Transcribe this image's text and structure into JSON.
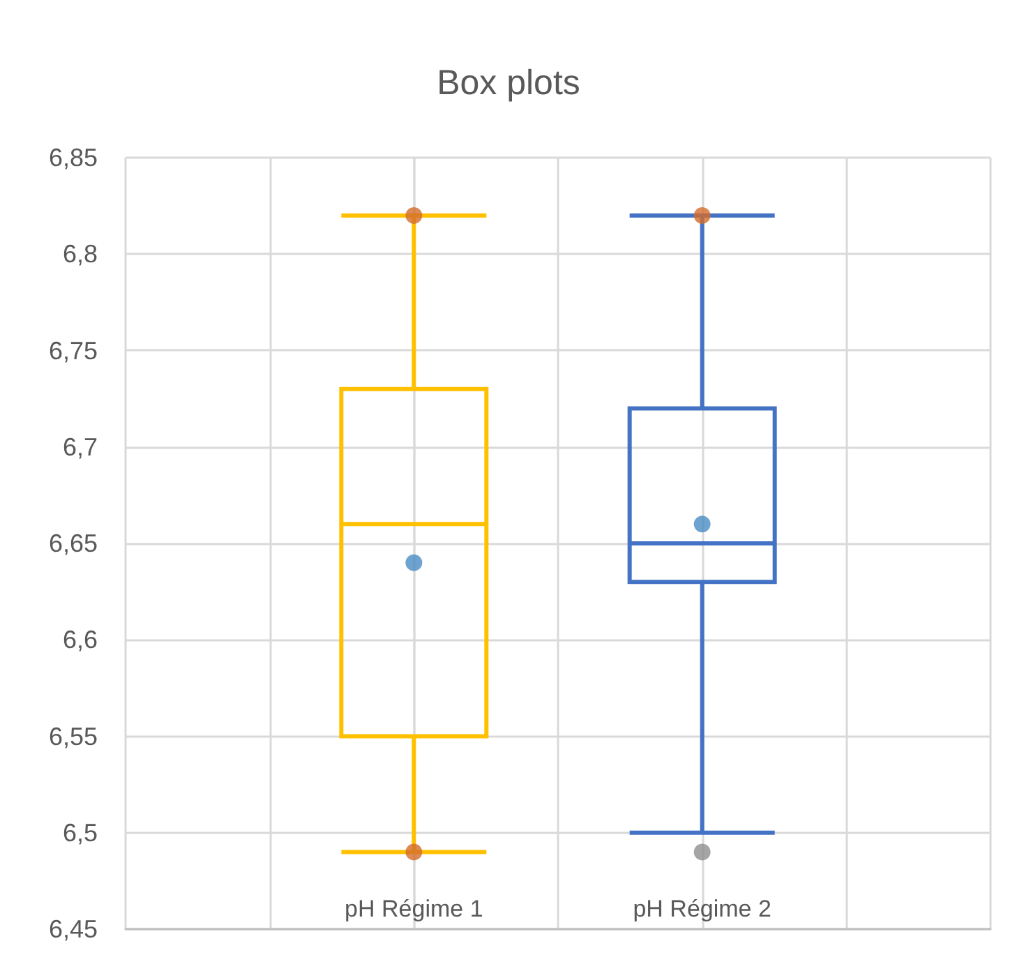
{
  "chart_data": {
    "type": "box",
    "title": "Box plots",
    "categories": [
      "pH Régime 1",
      "pH Régime 2"
    ],
    "series": [
      {
        "type": "box",
        "colors": [
          "#ffc000",
          "#4472c4"
        ],
        "boxes": [
          {
            "low": 6.49,
            "q1": 6.55,
            "median": 6.66,
            "q3": 6.73,
            "high": 6.82
          },
          {
            "low": 6.5,
            "q1": 6.63,
            "median": 6.65,
            "q3": 6.72,
            "high": 6.82
          }
        ]
      },
      {
        "type": "scatter",
        "x": [
          "pH Régime 1",
          "pH Régime 2"
        ],
        "values": [
          6.64,
          6.66
        ],
        "color": "#4a8cc4"
      },
      {
        "type": "scatter",
        "x": [
          "pH Régime 1",
          "pH Régime 1",
          "pH Régime 2",
          "pH Régime 2"
        ],
        "values": [
          6.82,
          6.49,
          6.82,
          6.49
        ],
        "colors": [
          "#d36b2a",
          "#d36b2a",
          "#d36b2a",
          "#8f8f8f"
        ]
      }
    ],
    "ylim": [
      6.45,
      6.85
    ],
    "yticks": [
      {
        "value": 6.45,
        "label": "6,45"
      },
      {
        "value": 6.5,
        "label": "6,5"
      },
      {
        "value": 6.55,
        "label": "6,55"
      },
      {
        "value": 6.6,
        "label": "6,6"
      },
      {
        "value": 6.65,
        "label": "6,65"
      },
      {
        "value": 6.7,
        "label": "6,7"
      },
      {
        "value": 6.75,
        "label": "6,75"
      },
      {
        "value": 6.8,
        "label": "6,8"
      },
      {
        "value": 6.85,
        "label": "6,85"
      }
    ],
    "grid": true,
    "marker": "circle"
  }
}
